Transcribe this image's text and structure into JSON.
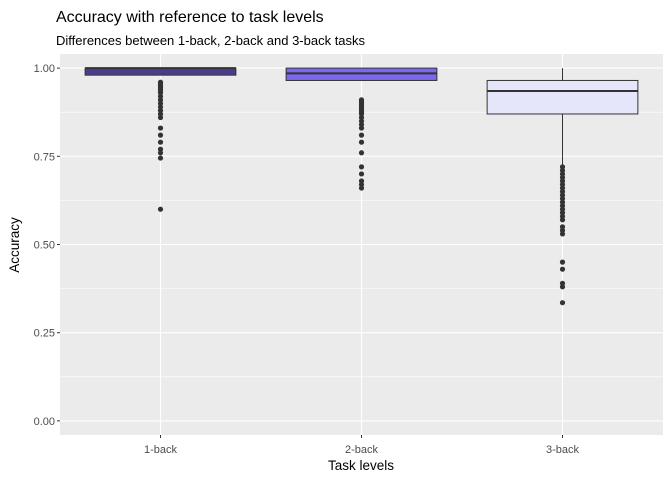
{
  "chart_data": {
    "type": "boxplot",
    "title": "Accuracy with reference to task levels",
    "subtitle": "Differences between 1-back, 2-back and 3-back tasks",
    "xlabel": "Task levels",
    "ylabel": "Accuracy",
    "ylim": [
      -0.04,
      1.04
    ],
    "yticks": [
      0.0,
      0.25,
      0.5,
      0.75,
      1.0
    ],
    "ytick_labels": [
      "0.00",
      "0.25",
      "0.50",
      "0.75",
      "1.00"
    ],
    "grid": true,
    "panel_background": "#EBEBEB",
    "grid_color": "#FFFFFF",
    "categories": [
      "1-back",
      "2-back",
      "3-back"
    ],
    "boxes": [
      {
        "name": "1-back",
        "fill": "#483D8B",
        "whisker_low": 0.98,
        "q1": 0.98,
        "median": 1.0,
        "q3": 1.0,
        "whisker_high": 1.0,
        "outliers": [
          0.96,
          0.955,
          0.95,
          0.945,
          0.94,
          0.935,
          0.93,
          0.92,
          0.91,
          0.9,
          0.89,
          0.88,
          0.87,
          0.86,
          0.83,
          0.81,
          0.79,
          0.77,
          0.76,
          0.745,
          0.6
        ]
      },
      {
        "name": "2-back",
        "fill": "#7B68EE",
        "whisker_low": 0.965,
        "q1": 0.965,
        "median": 0.985,
        "q3": 1.0,
        "whisker_high": 1.0,
        "outliers": [
          0.91,
          0.905,
          0.9,
          0.895,
          0.89,
          0.885,
          0.88,
          0.875,
          0.87,
          0.86,
          0.85,
          0.84,
          0.83,
          0.81,
          0.79,
          0.76,
          0.72,
          0.7,
          0.68,
          0.67,
          0.66
        ]
      },
      {
        "name": "3-back",
        "fill": "#E6E6FA",
        "whisker_low": 0.725,
        "q1": 0.87,
        "median": 0.935,
        "q3": 0.965,
        "whisker_high": 1.0,
        "outliers": [
          0.72,
          0.71,
          0.7,
          0.69,
          0.68,
          0.67,
          0.66,
          0.65,
          0.64,
          0.63,
          0.62,
          0.61,
          0.6,
          0.59,
          0.58,
          0.57,
          0.55,
          0.54,
          0.53,
          0.45,
          0.43,
          0.39,
          0.38,
          0.335
        ]
      }
    ]
  }
}
